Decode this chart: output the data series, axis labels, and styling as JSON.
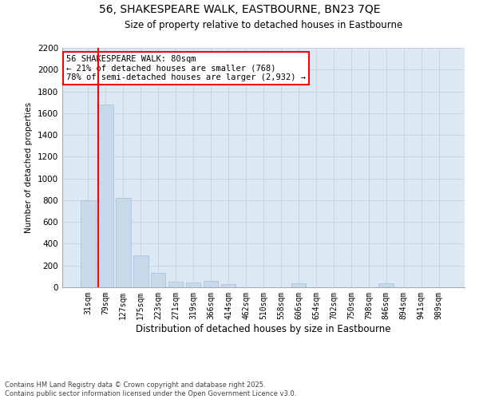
{
  "title": "56, SHAKESPEARE WALK, EASTBOURNE, BN23 7QE",
  "subtitle": "Size of property relative to detached houses in Eastbourne",
  "xlabel": "Distribution of detached houses by size in Eastbourne",
  "ylabel": "Number of detached properties",
  "categories": [
    "31sqm",
    "79sqm",
    "127sqm",
    "175sqm",
    "223sqm",
    "271sqm",
    "319sqm",
    "366sqm",
    "414sqm",
    "462sqm",
    "510sqm",
    "558sqm",
    "606sqm",
    "654sqm",
    "702sqm",
    "750sqm",
    "798sqm",
    "846sqm",
    "894sqm",
    "941sqm",
    "989sqm"
  ],
  "values": [
    800,
    1680,
    820,
    295,
    130,
    50,
    45,
    60,
    30,
    0,
    0,
    0,
    40,
    0,
    0,
    0,
    0,
    40,
    0,
    0,
    0
  ],
  "bar_color": "#c8d9ea",
  "bar_edge_color": "#aac4de",
  "grid_color": "#c8d4e0",
  "background_color": "#dce8f4",
  "vline_x_idx": 1,
  "vline_color": "red",
  "annotation_text": "56 SHAKESPEARE WALK: 80sqm\n← 21% of detached houses are smaller (768)\n78% of semi-detached houses are larger (2,932) →",
  "annotation_box_color": "white",
  "annotation_box_edge": "red",
  "footer": "Contains HM Land Registry data © Crown copyright and database right 2025.\nContains public sector information licensed under the Open Government Licence v3.0.",
  "ylim": [
    0,
    2200
  ],
  "yticks": [
    0,
    200,
    400,
    600,
    800,
    1000,
    1200,
    1400,
    1600,
    1800,
    2000,
    2200
  ]
}
